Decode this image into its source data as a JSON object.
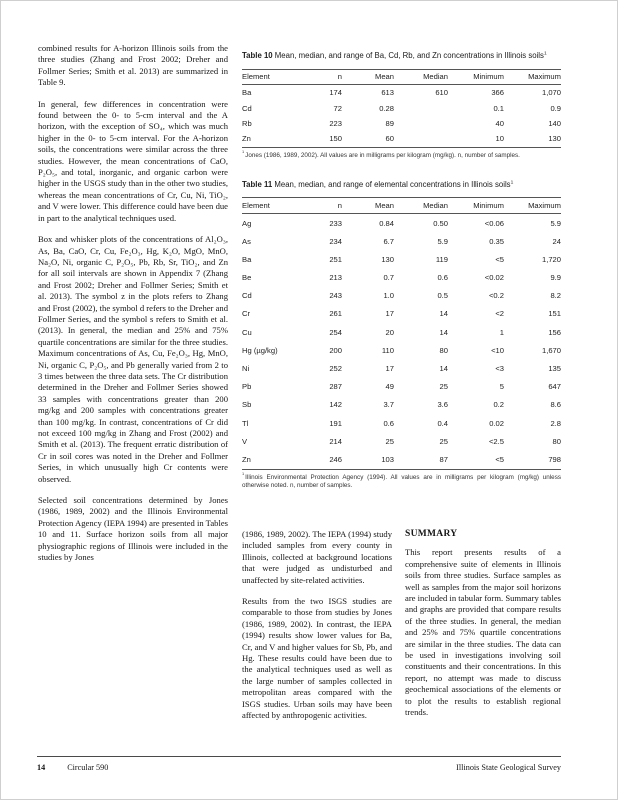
{
  "page": {
    "footer": {
      "page_number": "14",
      "publication": "Circular 590",
      "publisher": "Illinois State Geological Survey"
    }
  },
  "left_column": {
    "paragraphs": [
      "combined results for A-horizon Illinois soils from the three studies (Zhang and Frost 2002; Dreher and Follmer Series; Smith et al. 2013) are summarized in Table 9.",
      "In general, few differences in concentration were found between the 0- to 5-cm interval and the A horizon, with the exception of SO₄, which was much higher in the 0- to 5-cm interval. For the A-horizon soils, the concentrations were similar across the three studies. However, the mean concentrations of CaO, P₂O₅, and total, inorganic, and organic carbon were higher in the USGS study than in the other two studies, whereas the mean concentrations of Cr, Cu, Ni, TiO₂, and V were lower. This difference could have been due in part to the analytical techniques used.",
      "Box and whisker plots of the concentrations of Al₂O₃, As, Ba, CaO, Cr, Cu, Fe₂O₃, Hg, K₂O, MgO, MnO, Na₂O, Ni, organic C, P₂O₅, Pb, Rb, Sr, TiO₂, and Zn for all soil intervals are shown in Appendix 7 (Zhang and Frost 2002; Dreher and Follmer Series; Smith et al. 2013). The symbol z in the plots refers to Zhang and Frost (2002), the symbol d refers to the Dreher and Follmer Series, and the symbol s refers to Smith et al. (2013). In general, the median and 25% and 75% quartile concentrations are similar for the three studies. Maximum concentrations of As, Cu, Fe₂O₃, Hg, MnO, Ni, organic C, P₂O₅, and Pb generally varied from 2 to 3 times between the three data sets. The Cr distribution determined in the Dreher and Follmer Series showed 33 samples with concentrations greater than 200 mg/kg and 200 samples with concentrations greater than 100 mg/kg. In contrast, concentrations of Cr did not exceed 100 mg/kg in Zhang and Frost (2002) and Smith et al. (2013). The frequent erratic distribution of Cr in soil cores was noted in the Dreher and Follmer Series, in which unusually high Cr contents were observed.",
      "Selected soil concentrations determined by Jones (1986, 1989, 2002) and the Illinois Environmental Protection Agency (IEPA 1994) are presented in Tables 10 and 11. Surface horizon soils from all major physiographic regions of Illinois were included in the studies by Jones"
    ]
  },
  "middle_column": {
    "paragraphs": [
      "(1986, 1989, 2002). The IEPA (1994) study included samples from every county in Illinois, collected at background locations that were judged as undisturbed and unaffected by site-related activities.",
      "Results from the two ISGS studies are comparable to those from studies by Jones (1986, 1989, 2002). In contrast, the IEPA (1994) results show lower values for Ba, Cr, and V and higher values for Sb, Pb, and Hg. These results could have been due to the analytical techniques used as well as the large number of samples collected in metropolitan areas compared with the ISGS studies. Urban soils may have been affected by anthropogenic activities."
    ]
  },
  "summary": {
    "heading": "SUMMARY",
    "paragraphs": [
      "This report presents results of a comprehensive suite of elements in Illinois soils from three studies. Surface samples as well as samples from the major soil horizons are included in tabular form. Summary tables and graphs are provided that compare results of the three studies. In general, the median and 25% and 75% quartile concentrations are similar in the three studies. The data can be used in investigations involving soil constituents and their concentrations. In this report, no attempt was made to discuss geochemical associations of the elements or to plot the results to establish regional trends."
    ]
  },
  "table10": {
    "label": "Table 10",
    "title": "Mean, median, and range of Ba, Cd, Rb, and Zn concentrations in Illinois soils",
    "footnote_mark": "1",
    "headers": [
      "Element",
      "n",
      "Mean",
      "Median",
      "Minimum",
      "Maximum"
    ],
    "rows": [
      [
        "Ba",
        "174",
        "613",
        "610",
        "366",
        "1,070"
      ],
      [
        "Cd",
        "72",
        "0.28",
        "",
        "0.1",
        "0.9"
      ],
      [
        "Rb",
        "223",
        "89",
        "",
        "40",
        "140"
      ],
      [
        "Zn",
        "150",
        "60",
        "",
        "10",
        "130"
      ]
    ],
    "footnote": "Jones (1986, 1989, 2002). All values are in milligrams per kilogram (mg/kg). n, number of samples."
  },
  "table11": {
    "label": "Table 11",
    "title": "Mean, median, and range of elemental concentrations in Illinois soils",
    "footnote_mark": "1",
    "headers": [
      "Element",
      "n",
      "Mean",
      "Median",
      "Minimum",
      "Maximum"
    ],
    "rows": [
      [
        "Ag",
        "233",
        "0.84",
        "0.50",
        "<0.06",
        "5.9"
      ],
      [
        "As",
        "234",
        "6.7",
        "5.9",
        "0.35",
        "24"
      ],
      [
        "Ba",
        "251",
        "130",
        "119",
        "<5",
        "1,720"
      ],
      [
        "Be",
        "213",
        "0.7",
        "0.6",
        "<0.02",
        "9.9"
      ],
      [
        "Cd",
        "243",
        "1.0",
        "0.5",
        "<0.2",
        "8.2"
      ],
      [
        "Cr",
        "261",
        "17",
        "14",
        "<2",
        "151"
      ],
      [
        "Cu",
        "254",
        "20",
        "14",
        "1",
        "156"
      ],
      [
        "Hg (µg/kg)",
        "200",
        "110",
        "80",
        "<10",
        "1,670"
      ],
      [
        "Ni",
        "252",
        "17",
        "14",
        "<3",
        "135"
      ],
      [
        "Pb",
        "287",
        "49",
        "25",
        "5",
        "647"
      ],
      [
        "Sb",
        "142",
        "3.7",
        "3.6",
        "0.2",
        "8.6"
      ],
      [
        "Tl",
        "191",
        "0.6",
        "0.4",
        "0.02",
        "2.8"
      ],
      [
        "V",
        "214",
        "25",
        "25",
        "<2.5",
        "80"
      ],
      [
        "Zn",
        "246",
        "103",
        "87",
        "<5",
        "798"
      ]
    ],
    "footnote": "Illinois Environmental Protection Agency (1994). All values are in milligrams per kilogram (mg/kg) unless otherwise noted. n, number of samples."
  }
}
